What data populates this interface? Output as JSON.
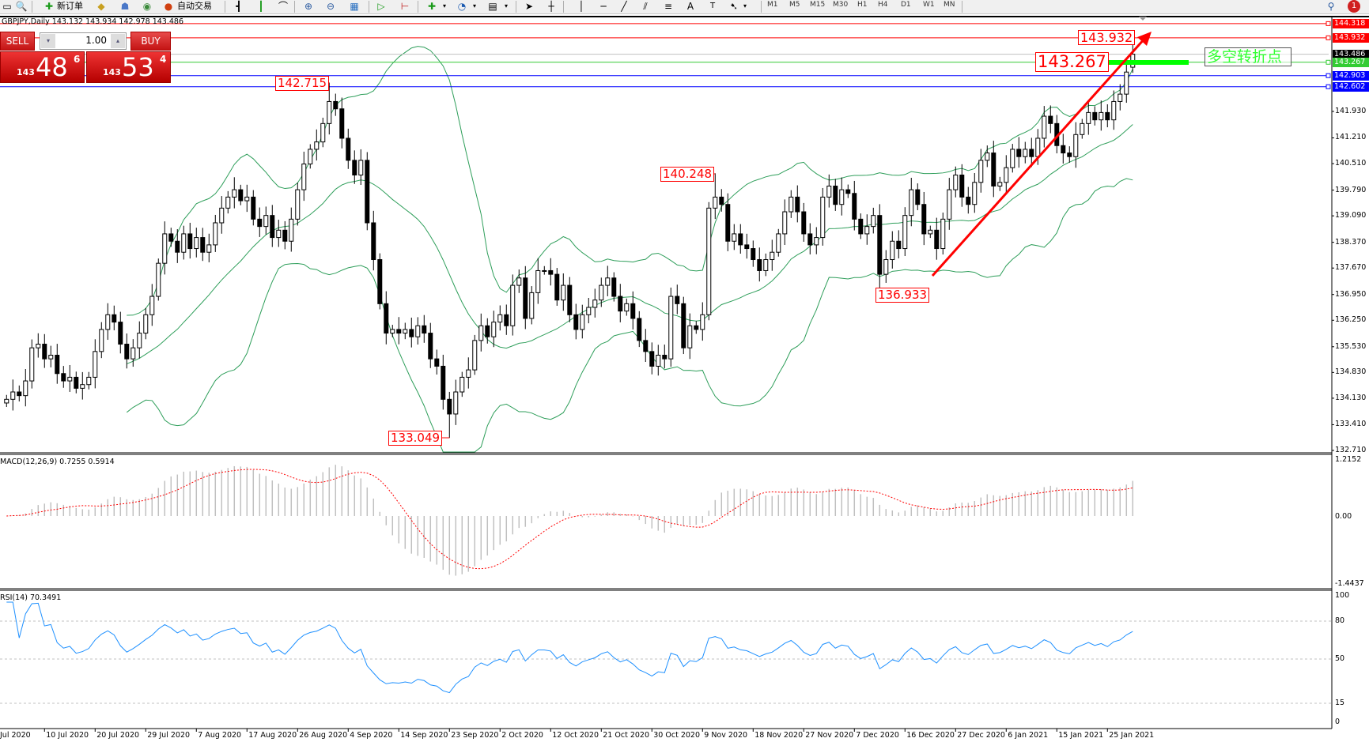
{
  "toolbar": {
    "new_order": "新订单",
    "auto_trading": "自动交易",
    "timeframes": [
      "M1",
      "M5",
      "M15",
      "M30",
      "H1",
      "H4",
      "D1",
      "W1",
      "MN"
    ],
    "notification_count": "1"
  },
  "chart": {
    "title": "GBPJPY,Daily  143.132 143.934 142.978 143.486",
    "one_click": {
      "sell": "SELL",
      "buy": "BUY",
      "lot": "1.00",
      "bid": {
        "big": "143",
        "main": "48",
        "pip": "6"
      },
      "ask": {
        "big": "143",
        "main": "53",
        "pip": "4"
      }
    },
    "price_axis": [
      "141.930",
      "141.210",
      "140.510",
      "139.790",
      "139.090",
      "138.370",
      "137.670",
      "136.950",
      "136.250",
      "135.530",
      "134.830",
      "134.130",
      "133.410",
      "132.710"
    ],
    "hlines": [
      {
        "price": "144.318",
        "color": "#ff0000"
      },
      {
        "price": "143.932",
        "color": "#ff0000"
      },
      {
        "price": "143.486",
        "color": "#000000"
      },
      {
        "price": "143.267",
        "color": "#33cc33"
      },
      {
        "price": "142.903",
        "color": "#0000ff"
      },
      {
        "price": "142.602",
        "color": "#0000ff"
      }
    ],
    "annotations": [
      "142.715",
      "140.248",
      "133.049",
      "136.933",
      "143.932",
      "143.267"
    ],
    "note": "多空转折点",
    "macd": {
      "label": "MACD(12,26,9) 0.7255 0.5914",
      "axis": [
        "1.2152",
        "0.00",
        "-1.4437"
      ]
    },
    "rsi": {
      "label": "RSI(14) 70.3491",
      "axis": [
        "100",
        "80",
        "50",
        "15",
        "0"
      ]
    },
    "dates": [
      "Jul 2020",
      "10 Jul 2020",
      "20 Jul 2020",
      "29 Jul 2020",
      "7 Aug 2020",
      "17 Aug 2020",
      "26 Aug 2020",
      "4 Sep 2020",
      "14 Sep 2020",
      "23 Sep 2020",
      "2 Oct 2020",
      "12 Oct 2020",
      "21 Oct 2020",
      "30 Oct 2020",
      "9 Nov 2020",
      "18 Nov 2020",
      "27 Nov 2020",
      "7 Dec 2020",
      "16 Dec 2020",
      "27 Dec 2020",
      "6 Jan 2021",
      "15 Jan 2021",
      "25 Jan 2021"
    ]
  },
  "chart_data": {
    "type": "candlestick",
    "symbol": "GBPJPY",
    "timeframe": "Daily",
    "ylim": [
      132.71,
      144.4
    ],
    "last_bar": {
      "open": 143.132,
      "high": 143.934,
      "low": 142.978,
      "close": 143.486
    },
    "marked_extremes": {
      "142.715": 51,
      "133.049": 70,
      "140.248": 112,
      "136.933": 138
    },
    "closes": [
      134.1,
      134.3,
      134.2,
      134.6,
      135.5,
      135.6,
      135.2,
      135.3,
      134.8,
      134.6,
      134.7,
      134.4,
      134.5,
      134.7,
      135.4,
      136.0,
      136.4,
      136.2,
      135.6,
      135.2,
      135.5,
      135.9,
      136.4,
      136.9,
      137.8,
      138.6,
      138.4,
      138.1,
      138.6,
      138.2,
      138.5,
      138.1,
      138.3,
      138.9,
      139.3,
      139.6,
      139.8,
      139.5,
      139.6,
      139.0,
      138.8,
      139.1,
      138.5,
      138.7,
      138.4,
      139.0,
      139.8,
      140.5,
      140.9,
      141.1,
      141.6,
      142.2,
      142.0,
      141.2,
      140.6,
      140.2,
      140.6,
      138.9,
      137.9,
      136.7,
      135.9,
      136.0,
      135.9,
      136.0,
      135.8,
      136.1,
      135.9,
      135.2,
      135.0,
      134.1,
      133.7,
      134.3,
      134.7,
      134.9,
      135.7,
      136.1,
      135.8,
      136.2,
      136.4,
      136.1,
      137.2,
      137.4,
      136.3,
      137.0,
      137.6,
      137.6,
      137.5,
      136.8,
      137.2,
      136.4,
      136.0,
      136.4,
      136.6,
      136.8,
      137.2,
      137.4,
      136.9,
      136.5,
      136.7,
      136.3,
      135.7,
      135.4,
      135.0,
      135.3,
      135.2,
      136.9,
      136.7,
      135.5,
      136.1,
      136.0,
      136.4,
      139.3,
      139.6,
      139.4,
      138.4,
      138.6,
      138.3,
      138.2,
      137.9,
      137.6,
      137.9,
      138.1,
      138.6,
      139.2,
      139.6,
      139.2,
      138.6,
      138.3,
      138.5,
      139.6,
      139.9,
      139.4,
      139.8,
      139.7,
      139.0,
      138.6,
      138.8,
      139.1,
      137.5,
      137.9,
      138.4,
      138.2,
      139.1,
      139.8,
      139.4,
      138.6,
      138.7,
      138.2,
      139.0,
      139.8,
      140.2,
      139.6,
      139.4,
      140.0,
      140.6,
      140.8,
      139.9,
      140.0,
      140.4,
      140.9,
      140.7,
      140.9,
      140.7,
      141.2,
      141.8,
      141.6,
      141.0,
      140.8,
      140.7,
      141.3,
      141.6,
      141.9,
      141.7,
      141.9,
      141.7,
      142.2,
      142.4,
      143.0,
      143.486
    ],
    "indicators": [
      "Bollinger Bands(20,2)",
      "MACD(12,26,9)",
      "RSI(14)"
    ],
    "colors": {
      "bands": "#2e9e5a",
      "macd_hist": "#c0c0c0",
      "macd_signal": "#ff0000",
      "rsi": "#1e90ff",
      "arrow": "#ff0000",
      "pivot_bar": "#00ff00"
    }
  }
}
